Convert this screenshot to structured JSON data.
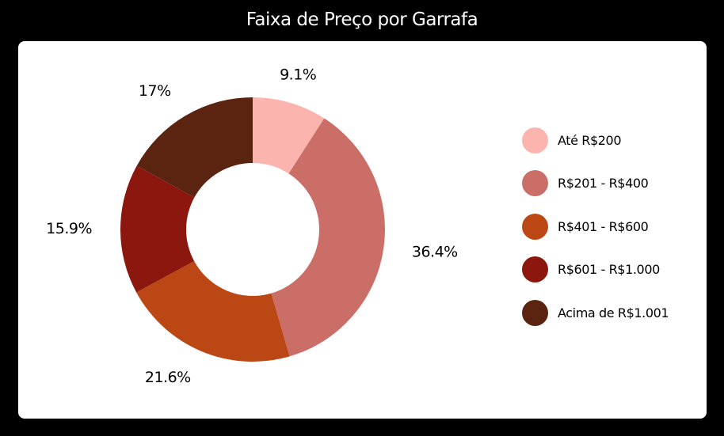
{
  "page": {
    "title": "Faixa de Preço por Garrafa"
  },
  "chart_data": {
    "type": "pie",
    "style": "donut",
    "title": "Faixa de Preço por Garrafa",
    "legend_position": "right",
    "categories": [
      "Até R$200",
      "R$201 - R$400",
      "R$401 - R$600",
      "R$601 - R$1.000",
      "Acima de R$1.001"
    ],
    "values": [
      9.1,
      36.4,
      21.6,
      15.9,
      17
    ],
    "value_labels": [
      "9.1%",
      "36.4%",
      "21.6%",
      "15.9%",
      "17%"
    ],
    "colors": [
      "#fbb5ae",
      "#cb6e68",
      "#bb4714",
      "#8c170f",
      "#5b2410"
    ]
  }
}
